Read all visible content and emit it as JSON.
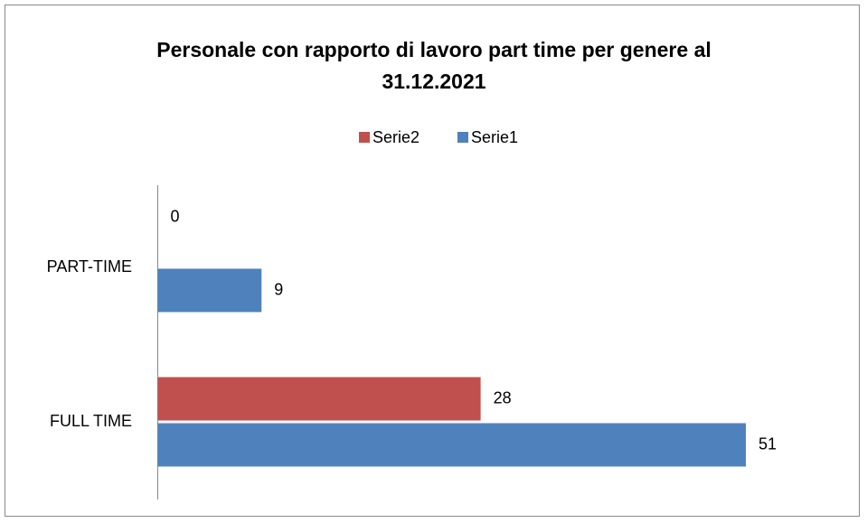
{
  "chart_data": {
    "type": "hbar",
    "title": [
      "Personale con rapporto di lavoro part time per genere al",
      "31.12.2021"
    ],
    "categories": [
      "PART-TIME",
      "FULL TIME"
    ],
    "series": [
      {
        "name": "Serie2",
        "color": "#c0504d",
        "values": [
          0,
          28
        ]
      },
      {
        "name": "Serie1",
        "color": "#4f81bd",
        "values": [
          9,
          51
        ]
      }
    ],
    "legend": "top"
  }
}
